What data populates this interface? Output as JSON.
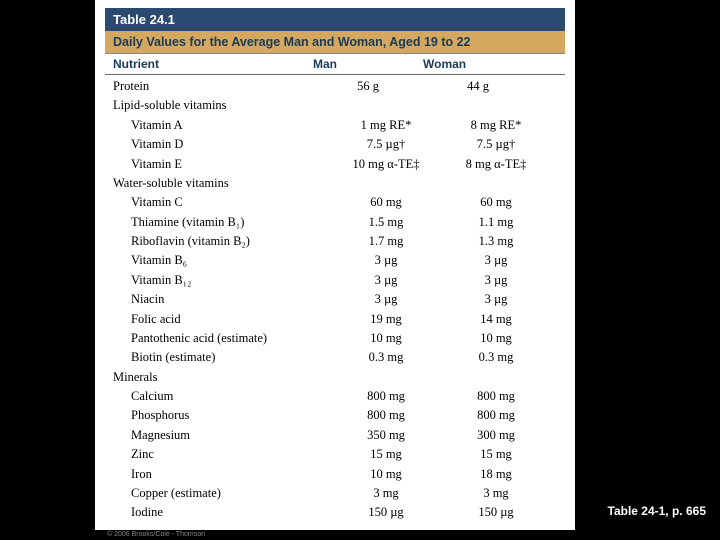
{
  "table": {
    "number": "Table 24.1",
    "title": "Daily Values for the Average Man and Woman, Aged 19 to 22",
    "headers": {
      "nutrient": "Nutrient",
      "man": "Man",
      "woman": "Woman"
    },
    "rows": [
      {
        "type": "data",
        "nutrient": "Protein",
        "man": "56 g",
        "woman": "44 g"
      },
      {
        "type": "section",
        "nutrient": "Lipid-soluble vitamins"
      },
      {
        "type": "indent",
        "nutrient": "Vitamin A",
        "man": "1 mg RE*",
        "woman": "8 mg RE*"
      },
      {
        "type": "indent",
        "nutrient": "Vitamin D",
        "man": "7.5 µg†",
        "woman": "7.5 µg†"
      },
      {
        "type": "indent",
        "nutrient": "Vitamin E",
        "man": "10 mg α-TE‡",
        "woman": "8 mg α-TE‡"
      },
      {
        "type": "section",
        "nutrient": "Water-soluble vitamins"
      },
      {
        "type": "indent",
        "nutrient": "Vitamin C",
        "man": "60 mg",
        "woman": "60 mg"
      },
      {
        "type": "indent",
        "nutrient": "Thiamine (vitamin B₁)",
        "man": "1.5 mg",
        "woman": "1.1 mg"
      },
      {
        "type": "indent",
        "nutrient": "Riboflavin (vitamin B₂)",
        "man": "1.7 mg",
        "woman": "1.3 mg"
      },
      {
        "type": "indent",
        "nutrient": "Vitamin B₆",
        "man": "3 µg",
        "woman": "3 µg"
      },
      {
        "type": "indent",
        "nutrient": "Vitamin B₁₂",
        "man": "3 µg",
        "woman": "3 µg"
      },
      {
        "type": "indent",
        "nutrient": "Niacin",
        "man": "3 µg",
        "woman": "3 µg"
      },
      {
        "type": "indent",
        "nutrient": "Folic acid",
        "man": "19 mg",
        "woman": "14 mg"
      },
      {
        "type": "indent",
        "nutrient": "Pantothenic acid (estimate)",
        "man": "10 mg",
        "woman": "10 mg"
      },
      {
        "type": "indent",
        "nutrient": "Biotin (estimate)",
        "man": "0.3 mg",
        "woman": "0.3 mg"
      },
      {
        "type": "section",
        "nutrient": "Minerals"
      },
      {
        "type": "indent",
        "nutrient": "Calcium",
        "man": "800 mg",
        "woman": "800 mg"
      },
      {
        "type": "indent",
        "nutrient": "Phosphorus",
        "man": "800 mg",
        "woman": "800 mg"
      },
      {
        "type": "indent",
        "nutrient": "Magnesium",
        "man": "350 mg",
        "woman": "300 mg"
      },
      {
        "type": "indent",
        "nutrient": "Zinc",
        "man": "15 mg",
        "woman": "15 mg"
      },
      {
        "type": "indent",
        "nutrient": "Iron",
        "man": "10 mg",
        "woman": "18 mg"
      },
      {
        "type": "indent",
        "nutrient": "Copper (estimate)",
        "man": "3 mg",
        "woman": "3 mg"
      },
      {
        "type": "indent",
        "nutrient": "Iodine",
        "man": "150 µg",
        "woman": "150 µg"
      }
    ],
    "copyright": "© 2006 Brooks/Cole - Thomson"
  },
  "caption": "Table 24-1, p. 665",
  "colors": {
    "header_bg": "#2b4a6f",
    "title_bg": "#d4a85e",
    "page_bg": "#ffffff",
    "slide_bg": "#000000"
  }
}
